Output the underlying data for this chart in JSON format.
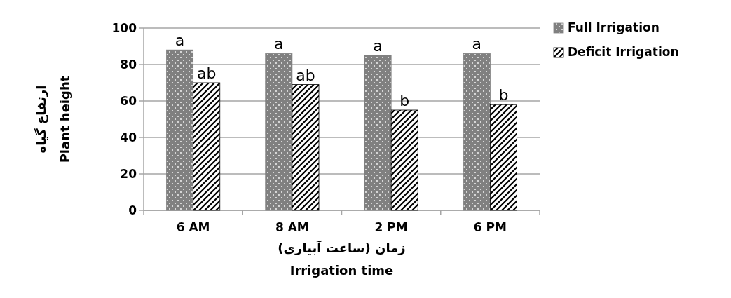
{
  "chart_data": {
    "type": "bar",
    "categories": [
      "6 AM",
      "8 AM",
      "2 PM",
      "6 PM"
    ],
    "series": [
      {
        "name": "Full Irrigation",
        "color": "#808080",
        "values": [
          88,
          86,
          85,
          86
        ]
      },
      {
        "name": "Deficit Irrigation",
        "color": "#000000",
        "values": [
          70,
          69,
          55,
          58
        ]
      }
    ],
    "ylabel": "ارتفاع گیاه\nPlant height",
    "xlabel": "زمان (ساعت آبیاری)\nIrrigation time",
    "ylim": [
      0,
      100
    ],
    "yticks": [
      0,
      20,
      40,
      60,
      80,
      100
    ],
    "grid": "y",
    "legend": "right",
    "annotations": [
      {
        "text": "a",
        "x": "6 AM",
        "y": 88
      },
      {
        "text": "ab",
        "x": "6 AM",
        "y": 70
      },
      {
        "text": "a",
        "x": "8 AM",
        "y": 86
      },
      {
        "text": "ab",
        "x": "8 AM",
        "y": 69
      },
      {
        "text": "a",
        "x": "2 PM",
        "y": 85
      },
      {
        "text": "b",
        "x": "2 PM",
        "y": 55
      },
      {
        "text": "a",
        "x": "6 PM",
        "y": 86
      },
      {
        "text": "b",
        "x": "6 PM",
        "y": 58
      }
    ]
  }
}
